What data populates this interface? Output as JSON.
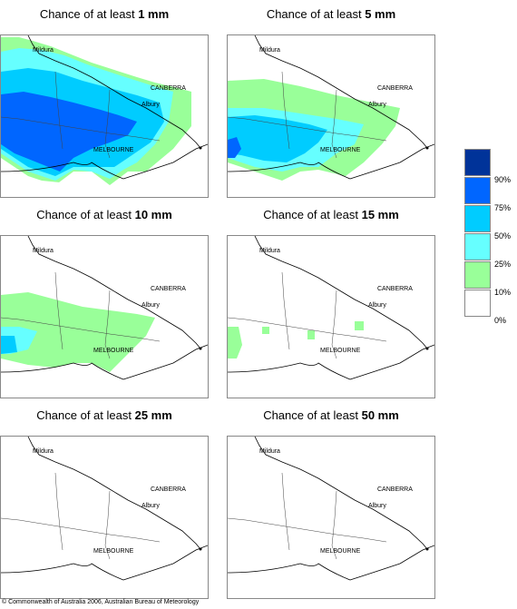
{
  "panels": [
    {
      "title_prefix": "Chance of at least ",
      "amount": "1 mm"
    },
    {
      "title_prefix": "Chance of at least ",
      "amount": "5 mm"
    },
    {
      "title_prefix": "Chance of at least ",
      "amount": "10 mm"
    },
    {
      "title_prefix": "Chance of at least ",
      "amount": "15 mm"
    },
    {
      "title_prefix": "Chance of at least ",
      "amount": "25 mm"
    },
    {
      "title_prefix": "Chance of at least ",
      "amount": "50 mm"
    }
  ],
  "places": {
    "mildura": "Mildura",
    "canberra": "CANBERRA",
    "albury": "Albury",
    "melbourne": "MELBOURNE"
  },
  "legend": {
    "levels": [
      "90%",
      "75%",
      "50%",
      "25%",
      "10%",
      "0%"
    ],
    "colors": [
      "#003399",
      "#0066ff",
      "#00ccff",
      "#66ffff",
      "#99ff99",
      "#ffffff"
    ]
  },
  "copyright": "© Commonwealth of Australia 2006, Australian Bureau of Meteorology"
}
